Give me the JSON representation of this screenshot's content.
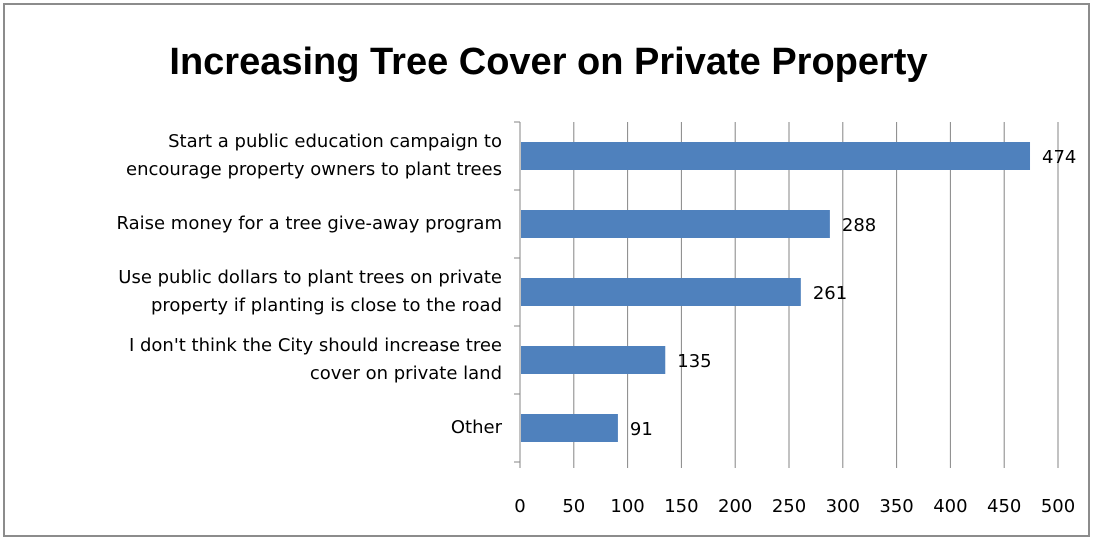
{
  "chart_data": {
    "type": "bar",
    "orientation": "horizontal",
    "title": "Increasing Tree Cover on Private Property",
    "categories": [
      [
        "Start a public education campaign to",
        "encourage property owners to plant trees"
      ],
      [
        "Raise money for a tree give-away program"
      ],
      [
        "Use public dollars to plant trees on private",
        "property if planting is close to the road"
      ],
      [
        "I don't think the City should increase tree",
        "cover on private land"
      ],
      [
        "Other"
      ]
    ],
    "values": [
      474,
      288,
      261,
      135,
      91
    ],
    "xlim": [
      0,
      500
    ],
    "x_ticks": [
      0,
      50,
      100,
      150,
      200,
      250,
      300,
      350,
      400,
      450,
      500
    ],
    "grid": true,
    "legend": "none",
    "bar_color": "#4f81bd"
  }
}
